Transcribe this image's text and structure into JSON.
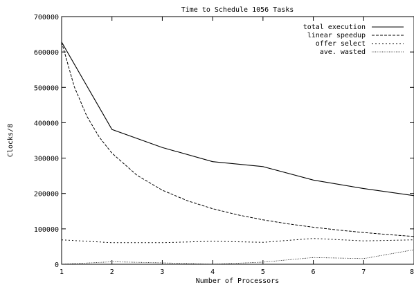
{
  "chart_data": {
    "type": "line",
    "title": "Time to Schedule 1056 Tasks",
    "xlabel": "Number of Processors",
    "ylabel": "Clocks/8",
    "xlim": [
      1,
      8
    ],
    "ylim": [
      0,
      700000
    ],
    "x_ticks": [
      "1",
      "2",
      "3",
      "4",
      "5",
      "6",
      "7",
      "8"
    ],
    "y_ticks": [
      "0",
      "100000",
      "200000",
      "300000",
      "400000",
      "500000",
      "600000",
      "700000"
    ],
    "grid": false,
    "legend_position": "top-right",
    "series": [
      {
        "name": "total execution",
        "style": "solid",
        "x": [
          1,
          2,
          3,
          4,
          5,
          6,
          7,
          8
        ],
        "y": [
          628000,
          381000,
          330000,
          290000,
          276000,
          238000,
          214000,
          194000
        ]
      },
      {
        "name": "linear speedup",
        "style": "dashed",
        "x": [
          1,
          1.25,
          1.5,
          1.75,
          2,
          2.5,
          3,
          3.5,
          4,
          4.5,
          5,
          5.5,
          6,
          6.5,
          7,
          7.5,
          8
        ],
        "y": [
          628000,
          502400,
          418667,
          358857,
          314000,
          251200,
          209333,
          179429,
          157000,
          139556,
          125600,
          114182,
          104667,
          96615,
          89714,
          83733,
          78500
        ]
      },
      {
        "name": "offer select",
        "style": "dotted",
        "x": [
          1,
          2,
          3,
          4,
          5,
          6,
          7,
          8
        ],
        "y": [
          69000,
          61000,
          61000,
          65000,
          62000,
          73000,
          66000,
          69000
        ]
      },
      {
        "name": "ave. wasted",
        "style": "fine-dotted",
        "x": [
          1,
          2,
          3,
          4,
          5,
          6,
          7,
          8
        ],
        "y": [
          0,
          7000,
          4000,
          0,
          6000,
          19000,
          16000,
          41000
        ]
      }
    ]
  }
}
